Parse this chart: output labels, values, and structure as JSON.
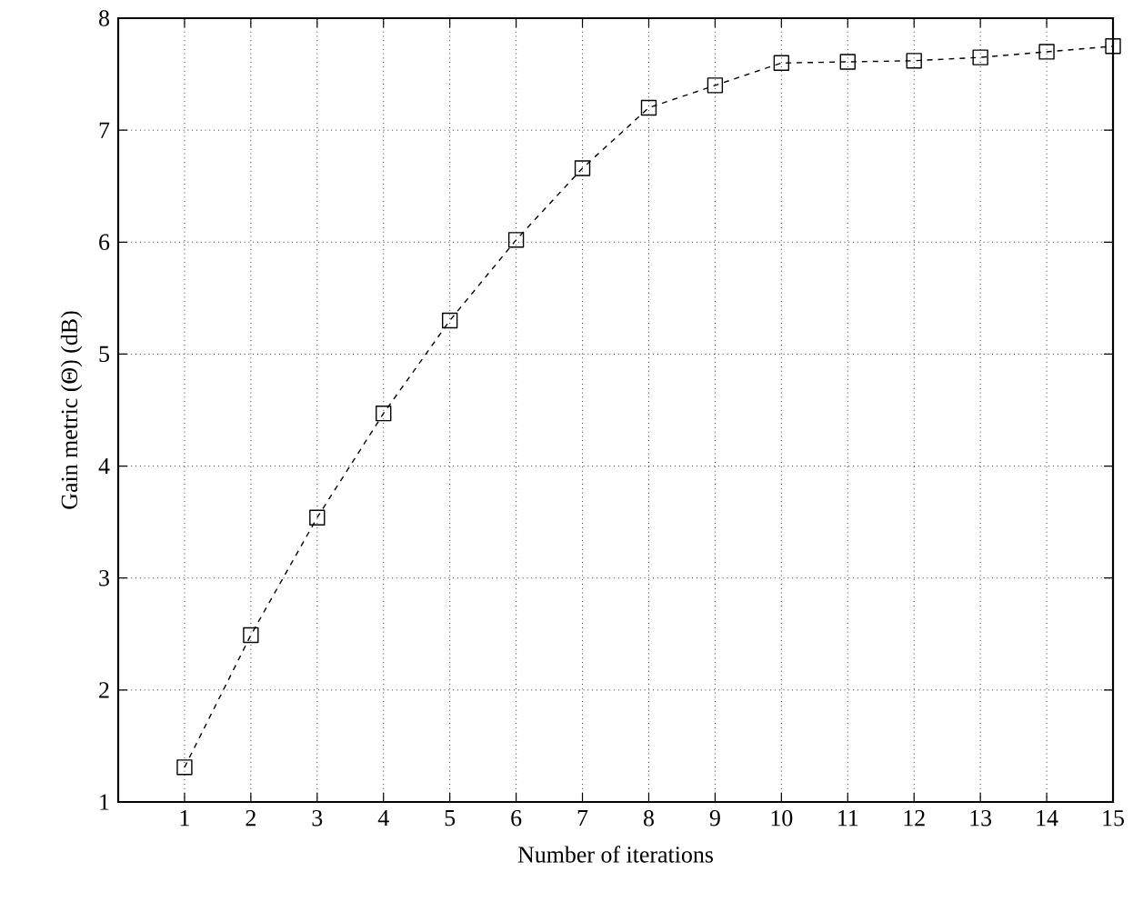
{
  "chart_data": {
    "type": "line",
    "xlabel": "Number of iterations",
    "ylabel": "Gain metric (Θ) (dB)",
    "x": [
      1,
      2,
      3,
      4,
      5,
      6,
      7,
      8,
      9,
      10,
      11,
      12,
      13,
      14,
      15
    ],
    "series": [
      {
        "color": "#000000",
        "values": [
          1.31,
          2.49,
          3.54,
          4.47,
          5.3,
          6.02,
          6.66,
          7.2,
          7.4,
          7.6,
          7.61,
          7.62,
          7.65,
          7.7,
          7.75
        ]
      }
    ],
    "xlim": [
      0,
      15
    ],
    "ylim": [
      1,
      8
    ],
    "xticks": [
      1,
      2,
      3,
      4,
      5,
      6,
      7,
      8,
      9,
      10,
      11,
      12,
      13,
      14,
      15
    ],
    "yticks": [
      1,
      2,
      3,
      4,
      5,
      6,
      7,
      8
    ],
    "grid": true,
    "marker": "square",
    "line_style": "dashed"
  }
}
